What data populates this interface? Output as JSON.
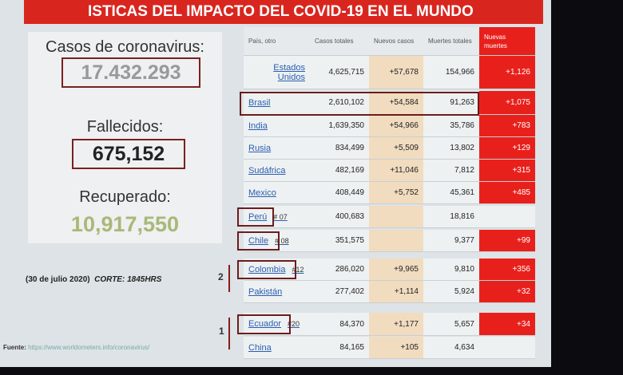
{
  "header": {
    "title": "ISTICAS DEL IMPACTO DEL COVID-19 EN EL MUNDO"
  },
  "summary": {
    "cases_label": "Casos de coronavirus:",
    "cases": "17.432.293",
    "deaths_label": "Fallecidos:",
    "deaths": "675,152",
    "recovered_label": "Recuperado:",
    "recovered": "10,917,550"
  },
  "note": {
    "date": "(30 de julio 2020)",
    "cut": "CORTE: 1845HRS"
  },
  "source": {
    "label": "Fuente:",
    "url": "https://www.worldometers.info/coronavirus/"
  },
  "groups": {
    "first": "2",
    "second": "1"
  },
  "table": {
    "columns": [
      "País, otro",
      "Casos totales",
      "Nuevos casos",
      "Muertes totales",
      "Nuevas muertes"
    ],
    "rows": [
      {
        "country": "Estados Unidos",
        "rank": null,
        "cases": "4,625,715",
        "new_cases": "+57,678",
        "deaths": "154,966",
        "new_deaths": "+1,126"
      },
      {
        "country": "Brasil",
        "rank": null,
        "cases": "2,610,102",
        "new_cases": "+54,584",
        "deaths": "91,263",
        "new_deaths": "+1,075"
      },
      {
        "country": "India",
        "rank": null,
        "cases": "1,639,350",
        "new_cases": "+54,966",
        "deaths": "35,786",
        "new_deaths": "+783"
      },
      {
        "country": "Rusia",
        "rank": null,
        "cases": "834,499",
        "new_cases": "+5,509",
        "deaths": "13,802",
        "new_deaths": "+129"
      },
      {
        "country": "Sudáfrica",
        "rank": null,
        "cases": "482,169",
        "new_cases": "+11,046",
        "deaths": "7,812",
        "new_deaths": "+315"
      },
      {
        "country": "Mexico",
        "rank": null,
        "cases": "408,449",
        "new_cases": "+5,752",
        "deaths": "45,361",
        "new_deaths": "+485"
      },
      {
        "country": "Perú",
        "rank": "# 07",
        "cases": "400,683",
        "new_cases": null,
        "deaths": "18,816",
        "new_deaths": null
      },
      {
        "country": "Chile",
        "rank": "# 08",
        "cases": "351,575",
        "new_cases": null,
        "deaths": "9,377",
        "new_deaths": "+99"
      },
      {
        "country": "Colombia",
        "rank": "#12",
        "cases": "286,020",
        "new_cases": "+9,965",
        "deaths": "9,810",
        "new_deaths": "+356"
      },
      {
        "country": "Pakistán",
        "rank": null,
        "cases": "277,402",
        "new_cases": "+1,114",
        "deaths": "5,924",
        "new_deaths": "+32"
      },
      {
        "country": "Ecuador",
        "rank": "#20",
        "cases": "84,370",
        "new_cases": "+1,177",
        "deaths": "5,657",
        "new_deaths": "+34"
      },
      {
        "country": "China",
        "rank": null,
        "cases": "84,165",
        "new_cases": "+105",
        "deaths": "4,634",
        "new_deaths": null
      }
    ]
  }
}
